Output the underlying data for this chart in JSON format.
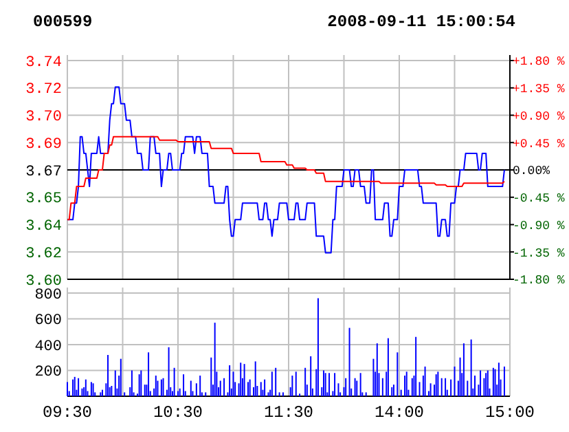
{
  "chart_data": [
    {
      "type": "line",
      "title": "000599",
      "subtitle": "2008-09-11 15:00:54",
      "categories": [
        null,
        null,
        null,
        null,
        null,
        null,
        null,
        null,
        null,
        null,
        null,
        null,
        null,
        null,
        null,
        null,
        null,
        null,
        null,
        null,
        null,
        null,
        null,
        null,
        null,
        null,
        null,
        null,
        null,
        null,
        null,
        null,
        null,
        null,
        null,
        null,
        null,
        null,
        null,
        null,
        null,
        null,
        null,
        null,
        null,
        null,
        null,
        null,
        null,
        null,
        null,
        null,
        null,
        null,
        null,
        null,
        null,
        null,
        null,
        null,
        null,
        null,
        null,
        null,
        null,
        null,
        null,
        null,
        null,
        null,
        null,
        null,
        null,
        null,
        null,
        null,
        null,
        null,
        null,
        null,
        null,
        null,
        null,
        null,
        null,
        null,
        null,
        null,
        null,
        null,
        null,
        null,
        null,
        null,
        null,
        null,
        null,
        null,
        null,
        null,
        null,
        null,
        null,
        null,
        null,
        null,
        null,
        null,
        null,
        null,
        null,
        null,
        null,
        null,
        null,
        null,
        null,
        null,
        null,
        null,
        null,
        null,
        null,
        null,
        null,
        null,
        null,
        null,
        null,
        null,
        null,
        null,
        null,
        null,
        null,
        null,
        null,
        null,
        null,
        null,
        null,
        null,
        null,
        null,
        null,
        null,
        null,
        null,
        null,
        null,
        null,
        null,
        null,
        null,
        null,
        null,
        null,
        null,
        null,
        null,
        null,
        null,
        null,
        null,
        null,
        null,
        null,
        null,
        null,
        null,
        null,
        null,
        null,
        null,
        null,
        null,
        null,
        null,
        null,
        null,
        null,
        null,
        null,
        null,
        null,
        null,
        null,
        null,
        null,
        null,
        null,
        null,
        null,
        null,
        null,
        null,
        null,
        null,
        null,
        null,
        null,
        null,
        null,
        null,
        null,
        null,
        null,
        null,
        null,
        null,
        null,
        null,
        null,
        null,
        null,
        null,
        null,
        null,
        null,
        null,
        null,
        null,
        null,
        null,
        null,
        null,
        null,
        null,
        null,
        null,
        null,
        null,
        null,
        null,
        null,
        null,
        null,
        null,
        null,
        null,
        null
      ],
      "ylim": [
        3.604,
        3.736
      ],
      "yticks": [
        {
          "value": 3.604,
          "label": "3.60"
        },
        {
          "value": 3.6205,
          "label": "3.62"
        },
        {
          "value": 3.637,
          "label": "3.64"
        },
        {
          "value": 3.6535,
          "label": "3.65"
        },
        {
          "value": 3.67,
          "label": "3.67"
        },
        {
          "value": 3.6865,
          "label": "3.69"
        },
        {
          "value": 3.703,
          "label": "3.70"
        },
        {
          "value": 3.7195,
          "label": "3.72"
        },
        {
          "value": 3.736,
          "label": "3.74"
        }
      ],
      "y2lim": [
        -1.8,
        1.8
      ],
      "y2ticks": [
        {
          "value": -1.8,
          "label": "-1.80 %"
        },
        {
          "value": -1.35,
          "label": "-1.35 %"
        },
        {
          "value": -0.9,
          "label": "-0.90 %"
        },
        {
          "value": -0.45,
          "label": "-0.45 %"
        },
        {
          "value": 0,
          "label": "0.00%"
        },
        {
          "value": 0.45,
          "label": "+0.45 %"
        },
        {
          "value": 0.9,
          "label": "+0.90 %"
        },
        {
          "value": 1.35,
          "label": "+1.35 %"
        },
        {
          "value": 1.8,
          "label": "+1.80 %"
        }
      ],
      "ref_lines": [
        {
          "axis": "y",
          "value": 3.67,
          "color": "#000000"
        }
      ],
      "grid": true,
      "tick_labels": "y",
      "marker": "none",
      "line_style": "solid",
      "series": [
        {
          "color": "#0000ff",
          "values": [
            3.64,
            3.64,
            3.64,
            3.64,
            3.65,
            3.65,
            3.66,
            3.69,
            3.69,
            3.68,
            3.68,
            3.67,
            3.66,
            3.68,
            3.68,
            3.68,
            3.68,
            3.69,
            3.68,
            3.68,
            3.68,
            3.68,
            3.68,
            3.7,
            3.71,
            3.71,
            3.72,
            3.72,
            3.72,
            3.71,
            3.71,
            3.71,
            3.7,
            3.7,
            3.7,
            3.69,
            3.69,
            3.69,
            3.68,
            3.68,
            3.68,
            3.67,
            3.67,
            3.67,
            3.67,
            3.69,
            3.69,
            3.69,
            3.68,
            3.68,
            3.68,
            3.66,
            3.67,
            3.67,
            3.67,
            3.68,
            3.68,
            3.67,
            3.67,
            3.67,
            3.67,
            3.67,
            3.68,
            3.68,
            3.69,
            3.69,
            3.69,
            3.69,
            3.69,
            3.68,
            3.69,
            3.69,
            3.69,
            3.68,
            3.68,
            3.68,
            3.68,
            3.66,
            3.66,
            3.66,
            3.65,
            3.65,
            3.65,
            3.65,
            3.65,
            3.65,
            3.66,
            3.66,
            3.64,
            3.63,
            3.63,
            3.64,
            3.64,
            3.64,
            3.64,
            3.65,
            3.65,
            3.65,
            3.65,
            3.65,
            3.65,
            3.65,
            3.65,
            3.65,
            3.64,
            3.64,
            3.64,
            3.65,
            3.65,
            3.64,
            3.64,
            3.63,
            3.64,
            3.64,
            3.64,
            3.65,
            3.65,
            3.65,
            3.65,
            3.65,
            3.64,
            3.64,
            3.64,
            3.64,
            3.65,
            3.65,
            3.64,
            3.64,
            3.64,
            3.64,
            3.65,
            3.65,
            3.65,
            3.65,
            3.65,
            3.63,
            3.63,
            3.63,
            3.63,
            3.63,
            3.62,
            3.62,
            3.62,
            3.62,
            3.64,
            3.64,
            3.66,
            3.66,
            3.66,
            3.66,
            3.67,
            3.67,
            3.67,
            3.67,
            3.66,
            3.66,
            3.67,
            3.67,
            3.67,
            3.66,
            3.66,
            3.66,
            3.65,
            3.65,
            3.65,
            3.67,
            3.67,
            3.64,
            3.64,
            3.64,
            3.64,
            3.64,
            3.65,
            3.65,
            3.65,
            3.63,
            3.63,
            3.64,
            3.64,
            3.64,
            3.66,
            3.66,
            3.66,
            3.67,
            3.67,
            3.67,
            3.67,
            3.67,
            3.67,
            3.67,
            3.67,
            3.66,
            3.66,
            3.65,
            3.65,
            3.65,
            3.65,
            3.65,
            3.65,
            3.65,
            3.65,
            3.63,
            3.63,
            3.64,
            3.64,
            3.64,
            3.63,
            3.63,
            3.65,
            3.65,
            3.65,
            3.66,
            3.66,
            3.67,
            3.67,
            3.67,
            3.68,
            3.68,
            3.68,
            3.68,
            3.68,
            3.68,
            3.68,
            3.67,
            3.67,
            3.68,
            3.68,
            3.68,
            3.66,
            3.66,
            3.66,
            3.66,
            3.66,
            3.66,
            3.66,
            3.66,
            3.66,
            3.67,
            null,
            null,
            null
          ]
        },
        {
          "color": "#ff0000",
          "values": [
            3.64,
            3.64,
            3.65,
            3.65,
            3.65,
            3.66,
            3.66,
            3.66,
            3.66,
            3.66,
            3.665,
            3.665,
            3.665,
            3.665,
            3.665,
            3.665,
            3.665,
            3.67,
            3.67,
            3.67,
            3.68,
            3.68,
            3.68,
            3.685,
            3.685,
            3.69,
            3.69,
            3.69,
            3.69,
            3.69,
            3.69,
            3.69,
            3.69,
            3.69,
            3.69,
            3.69,
            3.69,
            3.69,
            3.69,
            3.69,
            3.69,
            3.69,
            3.69,
            3.69,
            3.69,
            3.69,
            3.69,
            3.69,
            3.69,
            3.69,
            3.688,
            3.688,
            3.688,
            3.688,
            3.688,
            3.688,
            3.688,
            3.688,
            3.688,
            3.688,
            3.687,
            3.687,
            3.687,
            3.687,
            3.687,
            3.687,
            3.687,
            3.687,
            3.687,
            3.687,
            3.687,
            3.687,
            3.687,
            3.687,
            3.687,
            3.687,
            3.687,
            3.687,
            3.683,
            3.683,
            3.683,
            3.683,
            3.683,
            3.683,
            3.683,
            3.683,
            3.683,
            3.683,
            3.683,
            3.683,
            3.68,
            3.68,
            3.68,
            3.68,
            3.68,
            3.68,
            3.68,
            3.68,
            3.68,
            3.68,
            3.68,
            3.68,
            3.68,
            3.68,
            3.68,
            3.675,
            3.675,
            3.675,
            3.675,
            3.675,
            3.675,
            3.675,
            3.675,
            3.675,
            3.675,
            3.675,
            3.675,
            3.675,
            3.675,
            3.673,
            3.673,
            3.673,
            3.673,
            3.671,
            3.671,
            3.671,
            3.671,
            3.671,
            3.671,
            3.671,
            3.67,
            3.67,
            3.67,
            3.67,
            3.67,
            3.668,
            3.668,
            3.668,
            3.668,
            3.668,
            3.663,
            3.663,
            3.663,
            3.663,
            3.663,
            3.663,
            3.663,
            3.663,
            3.663,
            3.663,
            3.663,
            3.663,
            3.663,
            3.663,
            3.663,
            3.663,
            3.663,
            3.663,
            3.663,
            3.663,
            3.663,
            3.663,
            3.663,
            3.663,
            3.663,
            3.663,
            3.663,
            3.663,
            3.663,
            3.663,
            3.662,
            3.662,
            3.662,
            3.662,
            3.662,
            3.662,
            3.662,
            3.662,
            3.662,
            3.662,
            3.662,
            3.662,
            3.662,
            3.662,
            3.662,
            3.662,
            3.662,
            3.662,
            3.662,
            3.662,
            3.662,
            3.662,
            3.662,
            3.662,
            3.662,
            3.662,
            3.662,
            3.662,
            3.662,
            3.662,
            3.661,
            3.661,
            3.661,
            3.661,
            3.661,
            3.661,
            3.66,
            3.66,
            3.66,
            3.66,
            3.66,
            3.66,
            3.66,
            3.66,
            3.66,
            3.662,
            3.662,
            3.662,
            3.662,
            3.662,
            3.662,
            3.662,
            3.662,
            3.662,
            3.662,
            3.662,
            3.662,
            3.662,
            3.662,
            3.662,
            3.662,
            3.662,
            3.662,
            3.662,
            3.662,
            3.662,
            3.662,
            3.663,
            null,
            null,
            null
          ]
        }
      ]
    },
    {
      "type": "bar",
      "color": "#0000ff",
      "categories": [
        "09:30",
        null,
        null,
        null,
        null,
        null,
        null,
        null,
        null,
        null,
        null,
        null,
        null,
        null,
        null,
        null,
        null,
        null,
        null,
        null,
        null,
        null,
        null,
        null,
        null,
        null,
        null,
        null,
        null,
        null,
        null,
        null,
        null,
        null,
        null,
        null,
        null,
        null,
        null,
        null,
        null,
        null,
        null,
        null,
        null,
        null,
        null,
        null,
        null,
        null,
        null,
        null,
        null,
        null,
        null,
        null,
        null,
        null,
        null,
        null,
        "10:30",
        null,
        null,
        null,
        null,
        null,
        null,
        null,
        null,
        null,
        null,
        null,
        null,
        null,
        null,
        null,
        null,
        null,
        null,
        null,
        null,
        null,
        null,
        null,
        null,
        null,
        null,
        null,
        null,
        null,
        null,
        null,
        null,
        null,
        null,
        null,
        null,
        null,
        null,
        null,
        null,
        null,
        null,
        null,
        null,
        null,
        null,
        null,
        null,
        null,
        null,
        null,
        null,
        null,
        null,
        null,
        null,
        null,
        null,
        null,
        "11:30",
        null,
        null,
        null,
        null,
        null,
        null,
        null,
        null,
        null,
        null,
        null,
        null,
        null,
        null,
        null,
        null,
        null,
        null,
        null,
        null,
        null,
        null,
        null,
        null,
        null,
        null,
        null,
        null,
        null,
        null,
        null,
        null,
        null,
        null,
        null,
        null,
        null,
        null,
        null,
        null,
        null,
        null,
        null,
        null,
        null,
        null,
        null,
        null,
        null,
        null,
        null,
        null,
        null,
        null,
        null,
        null,
        null,
        null,
        null,
        "14:00",
        null,
        null,
        null,
        null,
        null,
        null,
        null,
        null,
        null,
        null,
        null,
        null,
        null,
        null,
        null,
        null,
        null,
        null,
        null,
        null,
        null,
        null,
        null,
        null,
        null,
        null,
        null,
        null,
        null,
        null,
        null,
        null,
        null,
        null,
        null,
        null,
        null,
        null,
        null,
        null,
        null,
        null,
        null,
        null,
        null,
        null,
        null,
        null,
        null,
        null,
        null,
        null,
        null,
        null,
        null,
        null,
        null,
        null,
        null,
        "15:00"
      ],
      "ylim": [
        0,
        800
      ],
      "yticks": [
        200,
        400,
        600,
        800
      ],
      "grid": true,
      "values": [
        110,
        40,
        null,
        130,
        150,
        50,
        140,
        null,
        60,
        70,
        130,
        40,
        null,
        110,
        100,
        30,
        null,
        null,
        30,
        50,
        null,
        100,
        320,
        70,
        80,
        null,
        200,
        60,
        160,
        290,
        null,
        30,
        null,
        null,
        70,
        200,
        30,
        null,
        20,
        170,
        200,
        null,
        90,
        90,
        340,
        40,
        null,
        60,
        160,
        120,
        null,
        130,
        140,
        null,
        50,
        380,
        70,
        40,
        220,
        null,
        40,
        60,
        null,
        170,
        40,
        null,
        null,
        120,
        40,
        null,
        100,
        null,
        160,
        30,
        null,
        30,
        null,
        null,
        300,
        90,
        570,
        190,
        70,
        120,
        null,
        140,
        null,
        30,
        240,
        60,
        190,
        110,
        null,
        100,
        260,
        140,
        250,
        null,
        110,
        130,
        null,
        70,
        270,
        80,
        null,
        110,
        50,
        130,
        null,
        30,
        50,
        190,
        null,
        220,
        null,
        30,
        null,
        30,
        null,
        null,
        null,
        70,
        160,
        null,
        190,
        null,
        20,
        null,
        null,
        220,
        90,
        null,
        310,
        60,
        null,
        210,
        760,
        null,
        70,
        200,
        180,
        30,
        180,
        null,
        40,
        180,
        null,
        100,
        30,
        null,
        70,
        140,
        null,
        530,
        60,
        null,
        140,
        120,
        null,
        180,
        30,
        null,
        30,
        null,
        null,
        null,
        290,
        190,
        410,
        180,
        null,
        140,
        null,
        190,
        450,
        null,
        70,
        90,
        null,
        340,
        null,
        50,
        null,
        160,
        190,
        50,
        null,
        140,
        160,
        460,
        null,
        110,
        null,
        160,
        230,
        null,
        40,
        100,
        null,
        90,
        170,
        190,
        null,
        140,
        null,
        140,
        50,
        null,
        130,
        null,
        230,
        null,
        120,
        300,
        180,
        410,
        null,
        120,
        null,
        440,
        60,
        160,
        null,
        90,
        200,
        null,
        140,
        180,
        200,
        60,
        null,
        220,
        210,
        90,
        260,
        130,
        null,
        230,
        null,
        null,
        null
      ]
    }
  ]
}
